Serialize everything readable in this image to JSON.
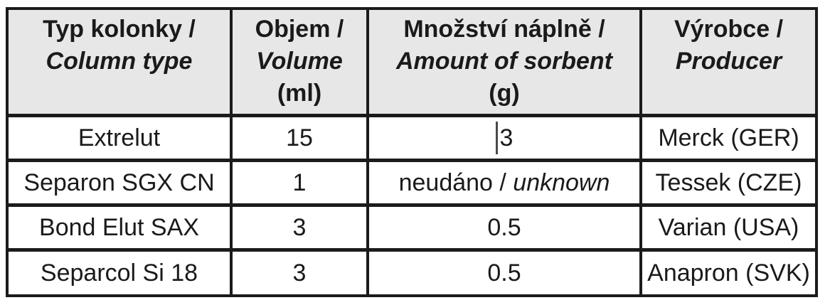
{
  "header": {
    "columns": [
      {
        "cz": "Typ kolonky /",
        "en": "Column type",
        "unit": ""
      },
      {
        "cz": "Objem /",
        "en": "Volume",
        "unit": "(ml)"
      },
      {
        "cz": "Množství náplně /",
        "en": "Amount of sorbent",
        "unit": "(g)"
      },
      {
        "cz": "Výrobce /",
        "en": "Producer",
        "unit": ""
      }
    ]
  },
  "rows": [
    {
      "column_type": "Extrelut",
      "volume": "15",
      "amount": "3",
      "amount_en": "",
      "producer": "Merck (GER)"
    },
    {
      "column_type": "Separon SGX CN",
      "volume": "1",
      "amount": "neudáno / ",
      "amount_en": "unknown",
      "producer": "Tessek (CZE)"
    },
    {
      "column_type": "Bond Elut SAX",
      "volume": "3",
      "amount": "0.5",
      "amount_en": "",
      "producer": "Varian (USA)"
    },
    {
      "column_type": "Separcol Si 18",
      "volume": "3",
      "amount": "0.5",
      "amount_en": "",
      "producer": "Anapron (SVK)"
    }
  ],
  "colors": {
    "header_bg": "#e7e7e7",
    "border": "#1b1b1b",
    "text": "#1a1a1a",
    "page_bg": "#ffffff",
    "caret": "#4a4a4a"
  }
}
